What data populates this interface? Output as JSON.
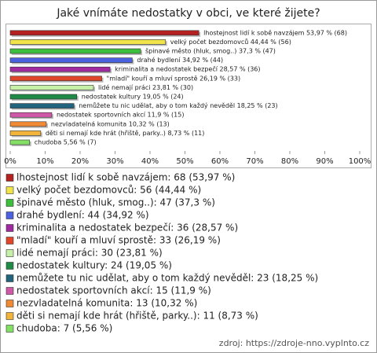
{
  "chart_data": {
    "type": "bar",
    "orientation": "horizontal",
    "title": "Jaké vnímáte nedostatky v obci, ve které žijete?",
    "categories": [
      "lhostejnost lidí k sobě navzájem",
      "velký počet bezdomovců",
      "špinavé město (hluk, smog..)",
      "drahé bydlení",
      "kriminalita a nedostatek bezpečí",
      "\"mladí\" kouří a mluví sprostě",
      "lidé nemají práci",
      "nedostatek kultury",
      "nemůžete tu nic udělat, aby o tom každý nevěděl",
      "nedostatek sportovních akcí",
      "nezvladatelná komunita",
      "děti si nemají kde hrát (hřiště, parky..)",
      "chudoba"
    ],
    "values": [
      53.97,
      44.44,
      37.3,
      34.92,
      28.57,
      26.19,
      23.81,
      19.05,
      18.25,
      11.9,
      10.32,
      8.73,
      5.56
    ],
    "value_labels": [
      "lhostejnost lidí k sobě navzájem 53,97 % (68)",
      "velký počet bezdomovců 44,44 % (56)",
      "špinavé město (hluk, smog..) 37,3 % (47)",
      "drahé bydlení 34,92 % (44)",
      "kriminalita a nedostatek bezpečí 28,57 % (36)",
      "\"mladí\" kouří a mluví sprostě 26,19 % (33)",
      "lidé nemají práci 23,81 % (30)",
      "nedostatek kultury 19,05 % (24)",
      "nemůžete tu nic udělat, aby o tom každý nevěděl 18,25 % (23)",
      "nedostatek sportovních akcí 11,9 % (15)",
      "nezvladatelná komunita 10,32 % (13)",
      "děti si nemají kde hrát (hřiště, parky..) 8,73 % (11)",
      "chudoba 5,56 % (7)"
    ],
    "legend_labels": [
      "lhostejnost lidí k sobě navzájem: 68 (53,97 %)",
      "velký počet bezdomovců: 56 (44,44 %)",
      "špinavé město (hluk, smog..): 47 (37,3 %)",
      "drahé bydlení: 44 (34,92 %)",
      "kriminalita a nedostatek bezpečí: 36 (28,57 %)",
      "\"mladí\" kouří a mluví sprostě: 33 (26,19 %)",
      "lidé nemají práci: 30 (23,81 %)",
      "nedostatek kultury: 24 (19,05 %)",
      "nemůžete tu nic udělat, aby o tom každý nevěděl: 23 (18,25 %)",
      "nedostatek sportovních akcí: 15 (11,9 %)",
      "nezvladatelná komunita: 13 (10,32 %)",
      "děti si nemají kde hrát (hřiště, parky..): 11 (8,73 %)",
      "chudoba: 7 (5,56 %)"
    ],
    "colors": [
      "#b52020",
      "#f2e34a",
      "#3cbf3c",
      "#4a62e0",
      "#a02aa0",
      "#e0462a",
      "#c6f0a8",
      "#1f8a46",
      "#22637e",
      "#d058a8",
      "#f08a34",
      "#f2b43a",
      "#84e064"
    ],
    "xlim": [
      0,
      100
    ],
    "xticks": [
      {
        "value": 0,
        "label": "0%"
      },
      {
        "value": 10,
        "label": "10%"
      },
      {
        "value": 20,
        "label": "20%"
      },
      {
        "value": 30,
        "label": "30%"
      },
      {
        "value": 40,
        "label": "40%"
      },
      {
        "value": 50,
        "label": "50%"
      },
      {
        "value": 60,
        "label": "60%"
      },
      {
        "value": 70,
        "label": "70%"
      },
      {
        "value": 80,
        "label": "80%"
      },
      {
        "value": 90,
        "label": "90%"
      },
      {
        "value": 100,
        "label": "100%"
      }
    ],
    "source": "zdroj: https://zdroje-nno.vyplnto.cz"
  }
}
